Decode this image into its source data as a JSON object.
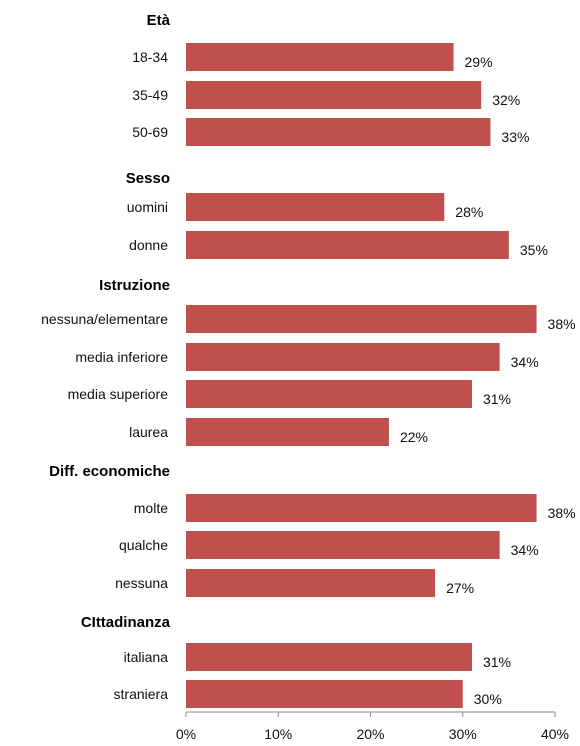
{
  "chart_data": {
    "type": "bar",
    "orientation": "horizontal",
    "bar_color": "#c0504d",
    "xlim": [
      0,
      40
    ],
    "x_ticks": [
      "0%",
      "10%",
      "20%",
      "30%",
      "40%"
    ],
    "grid": false,
    "groups": [
      {
        "name": "Età",
        "items": [
          {
            "label": "18-34",
            "value": 29,
            "value_label": "29%"
          },
          {
            "label": "35-49",
            "value": 32,
            "value_label": "32%"
          },
          {
            "label": "50-69",
            "value": 33,
            "value_label": "33%"
          }
        ]
      },
      {
        "name": "Sesso",
        "items": [
          {
            "label": "uomini",
            "value": 28,
            "value_label": "28%"
          },
          {
            "label": "donne",
            "value": 35,
            "value_label": "35%"
          }
        ]
      },
      {
        "name": "Istruzione",
        "items": [
          {
            "label": "nessuna/elementare",
            "value": 38,
            "value_label": "38%"
          },
          {
            "label": "media inferiore",
            "value": 34,
            "value_label": "34%"
          },
          {
            "label": "media superiore",
            "value": 31,
            "value_label": "31%"
          },
          {
            "label": "laurea",
            "value": 22,
            "value_label": "22%"
          }
        ]
      },
      {
        "name": "Diff. economiche",
        "items": [
          {
            "label": "molte",
            "value": 38,
            "value_label": "38%"
          },
          {
            "label": "qualche",
            "value": 34,
            "value_label": "34%"
          },
          {
            "label": "nessuna",
            "value": 27,
            "value_label": "27%"
          }
        ]
      },
      {
        "name": "CIttadinanza",
        "items": [
          {
            "label": "italiana",
            "value": 31,
            "value_label": "31%"
          },
          {
            "label": "straniera",
            "value": 30,
            "value_label": "30%"
          }
        ]
      }
    ]
  }
}
